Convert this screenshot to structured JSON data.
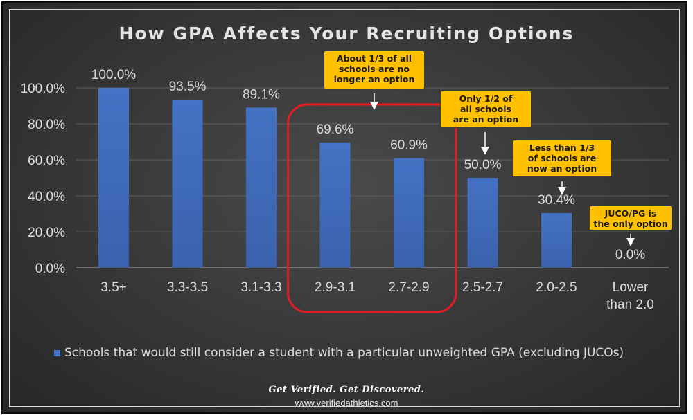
{
  "chart_data": {
    "type": "bar",
    "title": "How GPA Affects Your Recruiting Options",
    "categories": [
      "3.5+",
      "3.3-3.5",
      "3.1-3.3",
      "2.9-3.1",
      "2.7-2.9",
      "2.5-2.7",
      "2.0-2.5",
      "Lower than 2.0"
    ],
    "series": [
      {
        "name": "Schools that would still consider a student with a particular unweighted GPA (excluding JUCOs)",
        "values": [
          100.0,
          93.5,
          89.1,
          69.6,
          60.9,
          50.0,
          30.4,
          0.0
        ],
        "data_labels": [
          "100.0%",
          "93.5%",
          "89.1%",
          "69.6%",
          "60.9%",
          "50.0%",
          "30.4%",
          "0.0%"
        ],
        "color": "#4472c4"
      }
    ],
    "y_ticks": [
      "0.0%",
      "20.0%",
      "40.0%",
      "60.0%",
      "80.0%",
      "100.0%"
    ],
    "ylim": [
      0,
      100
    ],
    "grid": true,
    "legend_position": "bottom",
    "highlight": {
      "categories": [
        "2.9-3.1",
        "2.7-2.9"
      ],
      "color": "#e31b23"
    },
    "annotations": [
      {
        "category": "2.9-3.1",
        "text": "About 1/3 of all\nschools are no\nlonger an option"
      },
      {
        "category": "2.5-2.7",
        "text": "Only 1/2  of\nall schools\nare an option"
      },
      {
        "category": "2.0-2.5",
        "text": "Less than 1/3\nof schools are\nnow an option"
      },
      {
        "category": "Lower than 2.0",
        "text": "JUCO/PG is\nthe only option"
      }
    ]
  },
  "footer": {
    "tagline": "Get Verified. Get Discovered.",
    "website": "www.verifiedathletics.com"
  },
  "colors": {
    "bar": "#4472c4",
    "callout": "#ffc000",
    "highlight": "#e31b23",
    "text": "#dcdcdc"
  }
}
